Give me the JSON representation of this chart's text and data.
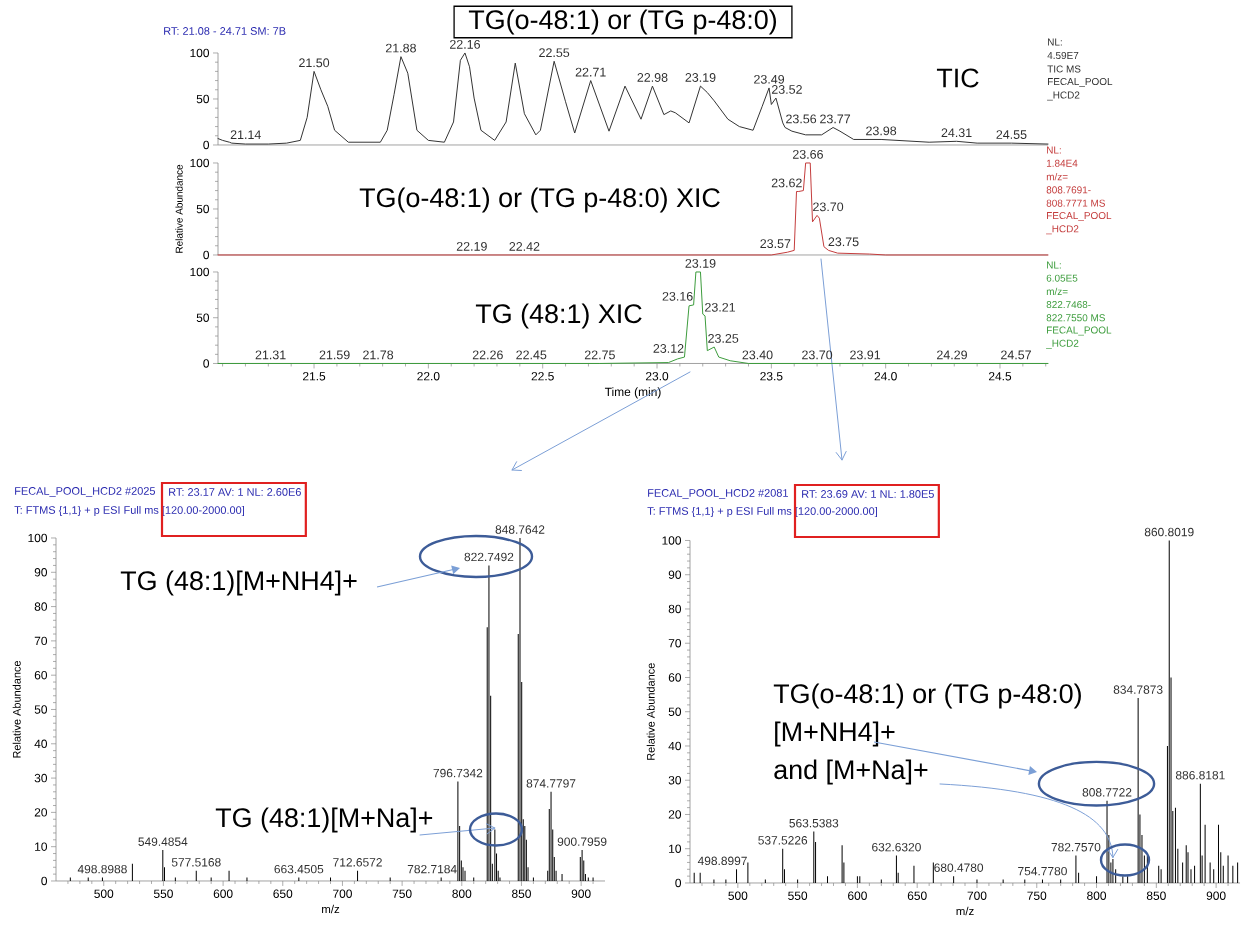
{
  "chart_data": [
    {
      "type": "line",
      "title": "TG(o-48:1) or (TG p-48:0)",
      "subtitle": "RT: 21.08 - 24.71 SM: 7B",
      "x": [
        21.08,
        21.1,
        21.13,
        21.14,
        21.2,
        21.3,
        21.38,
        21.44,
        21.47,
        21.5,
        21.53,
        21.56,
        21.59,
        21.65,
        21.79,
        21.82,
        21.85,
        21.88,
        21.91,
        21.95,
        22.0,
        22.07,
        22.11,
        22.14,
        22.16,
        22.18,
        22.2,
        22.23,
        22.29,
        22.34,
        22.38,
        22.42,
        22.47,
        22.49,
        22.55,
        22.6,
        22.64,
        22.71,
        22.79,
        22.86,
        22.93,
        22.98,
        23.03,
        23.06,
        23.08,
        23.14,
        23.19,
        23.22,
        23.25,
        23.31,
        23.36,
        23.42,
        23.46,
        23.49,
        23.5,
        23.52,
        23.55,
        23.56,
        23.59,
        23.65,
        23.72,
        23.77,
        23.8,
        23.86,
        23.98,
        24.19,
        24.31,
        24.4,
        24.55,
        24.71
      ],
      "values": [
        7,
        5,
        3,
        2,
        1,
        1,
        2,
        5,
        30,
        80,
        60,
        42,
        16,
        3,
        3,
        16,
        55,
        96,
        78,
        16,
        5,
        3,
        25,
        92,
        100,
        85,
        51,
        16,
        5,
        25,
        89,
        34,
        11,
        16,
        91,
        47,
        13,
        70,
        15,
        64,
        28,
        64,
        33,
        37,
        35,
        24,
        64,
        57,
        48,
        28,
        20,
        16,
        42,
        62,
        44,
        51,
        24,
        19,
        15,
        11,
        11,
        19,
        15,
        6,
        6,
        3,
        4,
        2,
        2,
        1
      ],
      "color": "#333333",
      "xlim": [
        21.08,
        24.71
      ],
      "ylim": [
        0,
        100
      ],
      "yticks": [
        0,
        {
          "value": 10,
          "label": null
        },
        {
          "value": 20,
          "label": null
        },
        {
          "value": 30,
          "label": null
        },
        {
          "value": 40,
          "label": null
        },
        50,
        {
          "value": 60,
          "label": null
        },
        {
          "value": 70,
          "label": null
        },
        {
          "value": 80,
          "label": null
        },
        {
          "value": 90,
          "label": null
        },
        100
      ],
      "tick_labels": "y",
      "annotations": [
        "TIC",
        "NL:",
        "4.59E7",
        "TIC MS",
        "FECAL_POOL",
        "_HCD2",
        {
          "text": "21.14",
          "x": 21.14,
          "y": 2
        },
        {
          "text": "21.50",
          "x": 21.5,
          "y": 80
        },
        {
          "text": "21.88",
          "x": 21.88,
          "y": 96
        },
        {
          "text": "22.16",
          "x": 22.16,
          "y": 100
        },
        {
          "text": "22.55",
          "x": 22.55,
          "y": 91
        },
        {
          "text": "22.71",
          "x": 22.71,
          "y": 70
        },
        {
          "text": "22.98",
          "x": 22.98,
          "y": 64
        },
        {
          "text": "23.19",
          "x": 23.19,
          "y": 64
        },
        {
          "text": "23.49",
          "x": 23.49,
          "y": 62
        },
        {
          "text": "23.52",
          "x": 23.52,
          "y": 51
        },
        {
          "text": "23.56",
          "x": 23.56,
          "y": 19
        },
        {
          "text": "23.77",
          "x": 23.77,
          "y": 19
        },
        {
          "text": "23.98",
          "x": 23.98,
          "y": 6
        },
        {
          "text": "24.31",
          "x": 24.31,
          "y": 4
        },
        {
          "text": "24.55",
          "x": 24.55,
          "y": 2
        }
      ]
    },
    {
      "type": "line",
      "ylabel": "Relative Abundance",
      "x": [
        21.08,
        22.19,
        22.42,
        23.5,
        23.57,
        23.6,
        23.61,
        23.62,
        23.64,
        23.65,
        23.66,
        23.67,
        23.68,
        23.7,
        23.71,
        23.73,
        23.75,
        23.79,
        23.93,
        24.0,
        24.71
      ],
      "values": [
        0,
        0,
        0,
        0,
        3,
        5,
        69,
        69,
        70,
        100,
        100,
        100,
        36,
        43,
        40,
        9,
        5,
        2,
        1,
        0,
        0
      ],
      "color": "#c43c3c",
      "xlim": [
        21.08,
        24.71
      ],
      "ylim": [
        0,
        100
      ],
      "yticks": [
        0,
        {
          "value": 10,
          "label": null
        },
        {
          "value": 20,
          "label": null
        },
        {
          "value": 30,
          "label": null
        },
        {
          "value": 40,
          "label": null
        },
        50,
        {
          "value": 60,
          "label": null
        },
        {
          "value": 70,
          "label": null
        },
        {
          "value": 80,
          "label": null
        },
        {
          "value": 90,
          "label": null
        },
        100
      ],
      "tick_labels": "y",
      "annotations": [
        "TG(o-48:1) or (TG p-48:0) XIC",
        "NL:",
        "1.84E4",
        "m/z=",
        "808.7691-",
        "808.7771 MS",
        "FECAL_POOL",
        "_HCD2",
        {
          "text": "22.19",
          "x": 22.19,
          "y": 0
        },
        {
          "text": "22.42",
          "x": 22.42,
          "y": 0
        },
        {
          "text": "23.57",
          "x": 23.57,
          "y": 3
        },
        {
          "text": "23.62",
          "x": 23.62,
          "y": 69
        },
        {
          "text": "23.66",
          "x": 23.66,
          "y": 100
        },
        {
          "text": "23.70",
          "x": 23.7,
          "y": 43
        },
        {
          "text": "23.75",
          "x": 23.75,
          "y": 5
        }
      ]
    },
    {
      "type": "line",
      "xlabel": "Time (min)",
      "x": [
        21.08,
        21.31,
        21.59,
        21.78,
        22.26,
        22.45,
        22.75,
        23.05,
        23.09,
        23.12,
        23.14,
        23.16,
        23.17,
        23.19,
        23.2,
        23.21,
        23.22,
        23.25,
        23.27,
        23.32,
        23.4,
        23.5,
        23.7,
        23.91,
        24.29,
        24.57,
        24.71
      ],
      "values": [
        0,
        0,
        0,
        0,
        0,
        0,
        0,
        1,
        5,
        7,
        63,
        64,
        100,
        100,
        54,
        52,
        14,
        18,
        7,
        3,
        0,
        0,
        0,
        0,
        0,
        0,
        0
      ],
      "color": "#3c9c3c",
      "xlim": [
        21.08,
        24.71
      ],
      "ylim": [
        0,
        100
      ],
      "xticks": [
        {
          "value": 21.1,
          "label": null
        },
        {
          "value": 21.2,
          "label": null
        },
        {
          "value": 21.3,
          "label": null
        },
        {
          "value": 21.4,
          "label": null
        },
        21.5,
        {
          "value": 21.6,
          "label": null
        },
        {
          "value": 21.7,
          "label": null
        },
        {
          "value": 21.8,
          "label": null
        },
        {
          "value": 21.9,
          "label": null
        },
        {
          "value": 22,
          "label": "22.0"
        },
        {
          "value": 22.1,
          "label": null
        },
        {
          "value": 22.2,
          "label": null
        },
        {
          "value": 22.3,
          "label": null
        },
        {
          "value": 22.4,
          "label": null
        },
        22.5,
        {
          "value": 22.6,
          "label": null
        },
        {
          "value": 22.7,
          "label": null
        },
        {
          "value": 22.8,
          "label": null
        },
        {
          "value": 22.9,
          "label": null
        },
        {
          "value": 23,
          "label": "23.0"
        },
        {
          "value": 23.1,
          "label": null
        },
        {
          "value": 23.2,
          "label": null
        },
        {
          "value": 23.3,
          "label": null
        },
        {
          "value": 23.4,
          "label": null
        },
        23.5,
        {
          "value": 23.6,
          "label": null
        },
        {
          "value": 23.7,
          "label": null
        },
        {
          "value": 23.8,
          "label": null
        },
        {
          "value": 23.9,
          "label": null
        },
        {
          "value": 24,
          "label": "24.0"
        },
        {
          "value": 24.1,
          "label": null
        },
        {
          "value": 24.2,
          "label": null
        },
        {
          "value": 24.3,
          "label": null
        },
        {
          "value": 24.4,
          "label": null
        },
        24.5,
        {
          "value": 24.6,
          "label": null
        },
        {
          "value": 24.7,
          "label": null
        }
      ],
      "yticks": [
        0,
        {
          "value": 10,
          "label": null
        },
        {
          "value": 20,
          "label": null
        },
        {
          "value": 30,
          "label": null
        },
        {
          "value": 40,
          "label": null
        },
        50,
        {
          "value": 60,
          "label": null
        },
        {
          "value": 70,
          "label": null
        },
        {
          "value": 80,
          "label": null
        },
        {
          "value": 90,
          "label": null
        },
        100
      ],
      "annotations": [
        "TG (48:1) XIC",
        "NL:",
        "6.05E5",
        "m/z=",
        "822.7468-",
        "822.7550 MS",
        "FECAL_POOL",
        "_HCD2",
        {
          "text": "21.31",
          "x": 21.31,
          "y": 0
        },
        {
          "text": "21.59",
          "x": 21.59,
          "y": 0
        },
        {
          "text": "21.78",
          "x": 21.78,
          "y": 0
        },
        {
          "text": "22.26",
          "x": 22.26,
          "y": 0
        },
        {
          "text": "22.45",
          "x": 22.45,
          "y": 0
        },
        {
          "text": "22.75",
          "x": 22.75,
          "y": 0
        },
        {
          "text": "23.12",
          "x": 23.12,
          "y": 7
        },
        {
          "text": "23.16",
          "x": 23.16,
          "y": 64
        },
        {
          "text": "23.19",
          "x": 23.19,
          "y": 100
        },
        {
          "text": "23.21",
          "x": 23.21,
          "y": 52
        },
        {
          "text": "23.25",
          "x": 23.25,
          "y": 18
        },
        {
          "text": "23.40",
          "x": 23.4,
          "y": 0
        },
        {
          "text": "23.70",
          "x": 23.7,
          "y": 0
        },
        {
          "text": "23.91",
          "x": 23.91,
          "y": 0
        },
        {
          "text": "24.29",
          "x": 24.29,
          "y": 0
        },
        {
          "text": "24.57",
          "x": 24.57,
          "y": 0
        }
      ]
    },
    {
      "type": "bar",
      "title": "FECAL_POOL_HCD2 #2025",
      "subtitle": "T: FTMS {1,1} + p ESI Full ms [120.00-2000.00]",
      "xlabel": "m/z",
      "ylabel": "Relative Abundance",
      "x": [
        472,
        487,
        498.8988,
        524,
        549.4854,
        550.9,
        560,
        577.5168,
        590,
        605,
        620,
        663.4505,
        690,
        712.6572,
        740,
        782.7184,
        796.7342,
        798.2,
        799.6,
        801,
        802.7,
        810,
        821.3,
        822.7492,
        824.2,
        825.6,
        827.7,
        829.1,
        830.5,
        832,
        847.3,
        848.7642,
        850.2,
        851.5,
        852.8,
        854.1,
        855.5,
        860,
        872,
        873.3,
        874.7797,
        876.2,
        877.5,
        879,
        884,
        899.3,
        900.7959,
        902.2,
        903.6,
        906,
        910
      ],
      "values": [
        1,
        1,
        1,
        5,
        9,
        4,
        1,
        3,
        1,
        3,
        1,
        1,
        1,
        3,
        1,
        1,
        29,
        16,
        6,
        4,
        3,
        1,
        74,
        92,
        54,
        5,
        15,
        8,
        3,
        1,
        72,
        100,
        58,
        18,
        16,
        12,
        4,
        1,
        3,
        21,
        26,
        15,
        7,
        3,
        2,
        7,
        9,
        6,
        2,
        1,
        1
      ],
      "color": "#000000",
      "xlim": [
        460,
        920
      ],
      "ylim": [
        0,
        100
      ],
      "xticks": [
        {
          "value": 470,
          "label": null
        },
        {
          "value": 480,
          "label": null
        },
        {
          "value": 490,
          "label": null
        },
        500,
        {
          "value": 510,
          "label": null
        },
        {
          "value": 520,
          "label": null
        },
        {
          "value": 530,
          "label": null
        },
        {
          "value": 540,
          "label": null
        },
        550,
        {
          "value": 560,
          "label": null
        },
        {
          "value": 570,
          "label": null
        },
        {
          "value": 580,
          "label": null
        },
        {
          "value": 590,
          "label": null
        },
        600,
        {
          "value": 610,
          "label": null
        },
        {
          "value": 620,
          "label": null
        },
        {
          "value": 630,
          "label": null
        },
        {
          "value": 640,
          "label": null
        },
        650,
        {
          "value": 660,
          "label": null
        },
        {
          "value": 670,
          "label": null
        },
        {
          "value": 680,
          "label": null
        },
        {
          "value": 690,
          "label": null
        },
        700,
        {
          "value": 710,
          "label": null
        },
        {
          "value": 720,
          "label": null
        },
        {
          "value": 730,
          "label": null
        },
        {
          "value": 740,
          "label": null
        },
        750,
        {
          "value": 760,
          "label": null
        },
        {
          "value": 770,
          "label": null
        },
        {
          "value": 780,
          "label": null
        },
        {
          "value": 790,
          "label": null
        },
        800,
        {
          "value": 810,
          "label": null
        },
        {
          "value": 820,
          "label": null
        },
        {
          "value": 830,
          "label": null
        },
        {
          "value": 840,
          "label": null
        },
        850,
        {
          "value": 860,
          "label": null
        },
        {
          "value": 870,
          "label": null
        },
        {
          "value": 880,
          "label": null
        },
        {
          "value": 890,
          "label": null
        },
        900,
        {
          "value": 910,
          "label": null
        }
      ],
      "yticks": [
        0,
        {
          "value": 2,
          "label": null
        },
        {
          "value": 4,
          "label": null
        },
        {
          "value": 6,
          "label": null
        },
        {
          "value": 8,
          "label": null
        },
        10,
        {
          "value": 12,
          "label": null
        },
        {
          "value": 14,
          "label": null
        },
        {
          "value": 16,
          "label": null
        },
        {
          "value": 18,
          "label": null
        },
        20,
        {
          "value": 22,
          "label": null
        },
        {
          "value": 24,
          "label": null
        },
        {
          "value": 26,
          "label": null
        },
        {
          "value": 28,
          "label": null
        },
        30,
        {
          "value": 32,
          "label": null
        },
        {
          "value": 34,
          "label": null
        },
        {
          "value": 36,
          "label": null
        },
        {
          "value": 38,
          "label": null
        },
        40,
        {
          "value": 42,
          "label": null
        },
        {
          "value": 44,
          "label": null
        },
        {
          "value": 46,
          "label": null
        },
        {
          "value": 48,
          "label": null
        },
        50,
        {
          "value": 52,
          "label": null
        },
        {
          "value": 54,
          "label": null
        },
        {
          "value": 56,
          "label": null
        },
        {
          "value": 58,
          "label": null
        },
        60,
        {
          "value": 62,
          "label": null
        },
        {
          "value": 64,
          "label": null
        },
        {
          "value": 66,
          "label": null
        },
        {
          "value": 68,
          "label": null
        },
        70,
        {
          "value": 72,
          "label": null
        },
        {
          "value": 74,
          "label": null
        },
        {
          "value": 76,
          "label": null
        },
        {
          "value": 78,
          "label": null
        },
        80,
        {
          "value": 82,
          "label": null
        },
        {
          "value": 84,
          "label": null
        },
        {
          "value": 86,
          "label": null
        },
        {
          "value": 88,
          "label": null
        },
        90,
        {
          "value": 92,
          "label": null
        },
        {
          "value": 94,
          "label": null
        },
        {
          "value": 96,
          "label": null
        },
        {
          "value": 98,
          "label": null
        },
        100
      ],
      "annotations": [
        "RT: 23.17 AV: 1 NL: 2.60E6",
        "TG (48:1)[M+NH4]+",
        {
          "text": "TG (48:1)[M+Na]+",
          "x": 827.7,
          "y": 15
        },
        {
          "text": "498.8988",
          "x": 498.8988,
          "y": 1
        },
        {
          "text": "549.4854",
          "x": 549.4854,
          "y": 9
        },
        {
          "text": "577.5168",
          "x": 577.5168,
          "y": 3
        },
        {
          "text": "663.4505",
          "x": 663.4505,
          "y": 1
        },
        {
          "text": "712.6572",
          "x": 712.6572,
          "y": 3
        },
        {
          "text": "782.7184",
          "x": 782.7184,
          "y": 1
        },
        {
          "text": "796.7342",
          "x": 796.7342,
          "y": 29
        },
        {
          "text": "822.7492",
          "x": 822.7492,
          "y": 92
        },
        {
          "text": "848.7642",
          "x": 848.7642,
          "y": 100
        },
        {
          "text": "874.7797",
          "x": 874.7797,
          "y": 26
        },
        {
          "text": "900.7959",
          "x": 900.7959,
          "y": 9
        }
      ]
    },
    {
      "type": "bar",
      "title": "FECAL_POOL_HCD2 #2081",
      "subtitle": "T: FTMS {1,1} + p ESI Full ms [120.00-2000.00]",
      "xlabel": "m/z",
      "ylabel": "Relative Abundance",
      "x": [
        463.5,
        468.5,
        480,
        490,
        498.8997,
        508.4,
        523,
        537.5226,
        539,
        550,
        563.5383,
        565,
        575,
        587.2,
        588.7,
        600,
        602,
        620,
        632.632,
        634.1,
        647.3,
        663.5,
        680.478,
        700,
        721.9,
        740,
        754.778,
        770,
        782.757,
        785,
        800,
        808.7722,
        810.3,
        812,
        813.7,
        816,
        822,
        826,
        834.7873,
        836.3,
        838,
        840,
        842.5,
        852,
        854,
        859.3,
        860.8019,
        862.3,
        863.8,
        866,
        868,
        872,
        875,
        876.5,
        879,
        882,
        886.8181,
        888.3,
        890.8,
        895,
        898,
        902,
        903.9,
        906,
        910,
        914,
        918
      ],
      "values": [
        3,
        3,
        1,
        1,
        4,
        6,
        1,
        10,
        4,
        1,
        15,
        12,
        2,
        11,
        6,
        2,
        2,
        1,
        8,
        3,
        5,
        6,
        2,
        1,
        1,
        1,
        1,
        1,
        8,
        3,
        2,
        24,
        14,
        6,
        7,
        4,
        2,
        2,
        54,
        20,
        14,
        8,
        8,
        5,
        4,
        40,
        100,
        60,
        21,
        22,
        10,
        6,
        11,
        9,
        4,
        5,
        29,
        8,
        17,
        6,
        4,
        17,
        9,
        5,
        8,
        5,
        6
      ],
      "color": "#000000",
      "xlim": [
        460,
        920
      ],
      "ylim": [
        0,
        100
      ],
      "xticks": [
        {
          "value": 470,
          "label": null
        },
        {
          "value": 480,
          "label": null
        },
        {
          "value": 490,
          "label": null
        },
        500,
        {
          "value": 510,
          "label": null
        },
        {
          "value": 520,
          "label": null
        },
        {
          "value": 530,
          "label": null
        },
        {
          "value": 540,
          "label": null
        },
        550,
        {
          "value": 560,
          "label": null
        },
        {
          "value": 570,
          "label": null
        },
        {
          "value": 580,
          "label": null
        },
        {
          "value": 590,
          "label": null
        },
        600,
        {
          "value": 610,
          "label": null
        },
        {
          "value": 620,
          "label": null
        },
        {
          "value": 630,
          "label": null
        },
        {
          "value": 640,
          "label": null
        },
        650,
        {
          "value": 660,
          "label": null
        },
        {
          "value": 670,
          "label": null
        },
        {
          "value": 680,
          "label": null
        },
        {
          "value": 690,
          "label": null
        },
        700,
        {
          "value": 710,
          "label": null
        },
        {
          "value": 720,
          "label": null
        },
        {
          "value": 730,
          "label": null
        },
        {
          "value": 740,
          "label": null
        },
        750,
        {
          "value": 760,
          "label": null
        },
        {
          "value": 770,
          "label": null
        },
        {
          "value": 780,
          "label": null
        },
        {
          "value": 790,
          "label": null
        },
        800,
        {
          "value": 810,
          "label": null
        },
        {
          "value": 820,
          "label": null
        },
        {
          "value": 830,
          "label": null
        },
        {
          "value": 840,
          "label": null
        },
        850,
        {
          "value": 860,
          "label": null
        },
        {
          "value": 870,
          "label": null
        },
        {
          "value": 880,
          "label": null
        },
        {
          "value": 890,
          "label": null
        },
        900,
        {
          "value": 910,
          "label": null
        }
      ],
      "yticks": [
        0,
        {
          "value": 2,
          "label": null
        },
        {
          "value": 4,
          "label": null
        },
        {
          "value": 6,
          "label": null
        },
        {
          "value": 8,
          "label": null
        },
        10,
        {
          "value": 12,
          "label": null
        },
        {
          "value": 14,
          "label": null
        },
        {
          "value": 16,
          "label": null
        },
        {
          "value": 18,
          "label": null
        },
        20,
        {
          "value": 22,
          "label": null
        },
        {
          "value": 24,
          "label": null
        },
        {
          "value": 26,
          "label": null
        },
        {
          "value": 28,
          "label": null
        },
        30,
        {
          "value": 32,
          "label": null
        },
        {
          "value": 34,
          "label": null
        },
        {
          "value": 36,
          "label": null
        },
        {
          "value": 38,
          "label": null
        },
        40,
        {
          "value": 42,
          "label": null
        },
        {
          "value": 44,
          "label": null
        },
        {
          "value": 46,
          "label": null
        },
        {
          "value": 48,
          "label": null
        },
        50,
        {
          "value": 52,
          "label": null
        },
        {
          "value": 54,
          "label": null
        },
        {
          "value": 56,
          "label": null
        },
        {
          "value": 58,
          "label": null
        },
        60,
        {
          "value": 62,
          "label": null
        },
        {
          "value": 64,
          "label": null
        },
        {
          "value": 66,
          "label": null
        },
        {
          "value": 68,
          "label": null
        },
        70,
        {
          "value": 72,
          "label": null
        },
        {
          "value": 74,
          "label": null
        },
        {
          "value": 76,
          "label": null
        },
        {
          "value": 78,
          "label": null
        },
        80,
        {
          "value": 82,
          "label": null
        },
        {
          "value": 84,
          "label": null
        },
        {
          "value": 86,
          "label": null
        },
        {
          "value": 88,
          "label": null
        },
        90,
        {
          "value": 92,
          "label": null
        },
        {
          "value": 94,
          "label": null
        },
        {
          "value": 96,
          "label": null
        },
        {
          "value": 98,
          "label": null
        },
        100
      ],
      "annotations": [
        "RT: 23.69 AV: 1 NL: 1.80E5",
        "TG(o-48:1) or (TG p-48:0)",
        "[M+NH4]+",
        {
          "text": "and [M+Na]+",
          "x": 813.7,
          "y": 7
        },
        {
          "text": "498.8997",
          "x": 498.8997,
          "y": 4
        },
        {
          "text": "537.5226",
          "x": 537.5226,
          "y": 10
        },
        {
          "text": "563.5383",
          "x": 563.5383,
          "y": 15
        },
        {
          "text": "632.6320",
          "x": 632.632,
          "y": 8
        },
        {
          "text": "680.4780",
          "x": 680.478,
          "y": 2
        },
        {
          "text": "754.7780",
          "x": 754.778,
          "y": 1
        },
        {
          "text": "782.7570",
          "x": 782.757,
          "y": 8
        },
        {
          "text": "808.7722",
          "x": 808.7722,
          "y": 24
        },
        {
          "text": "834.7873",
          "x": 834.7873,
          "y": 54
        },
        {
          "text": "860.8019",
          "x": 860.8019,
          "y": 100
        },
        {
          "text": "886.8181",
          "x": 886.8181,
          "y": 29
        }
      ]
    }
  ]
}
